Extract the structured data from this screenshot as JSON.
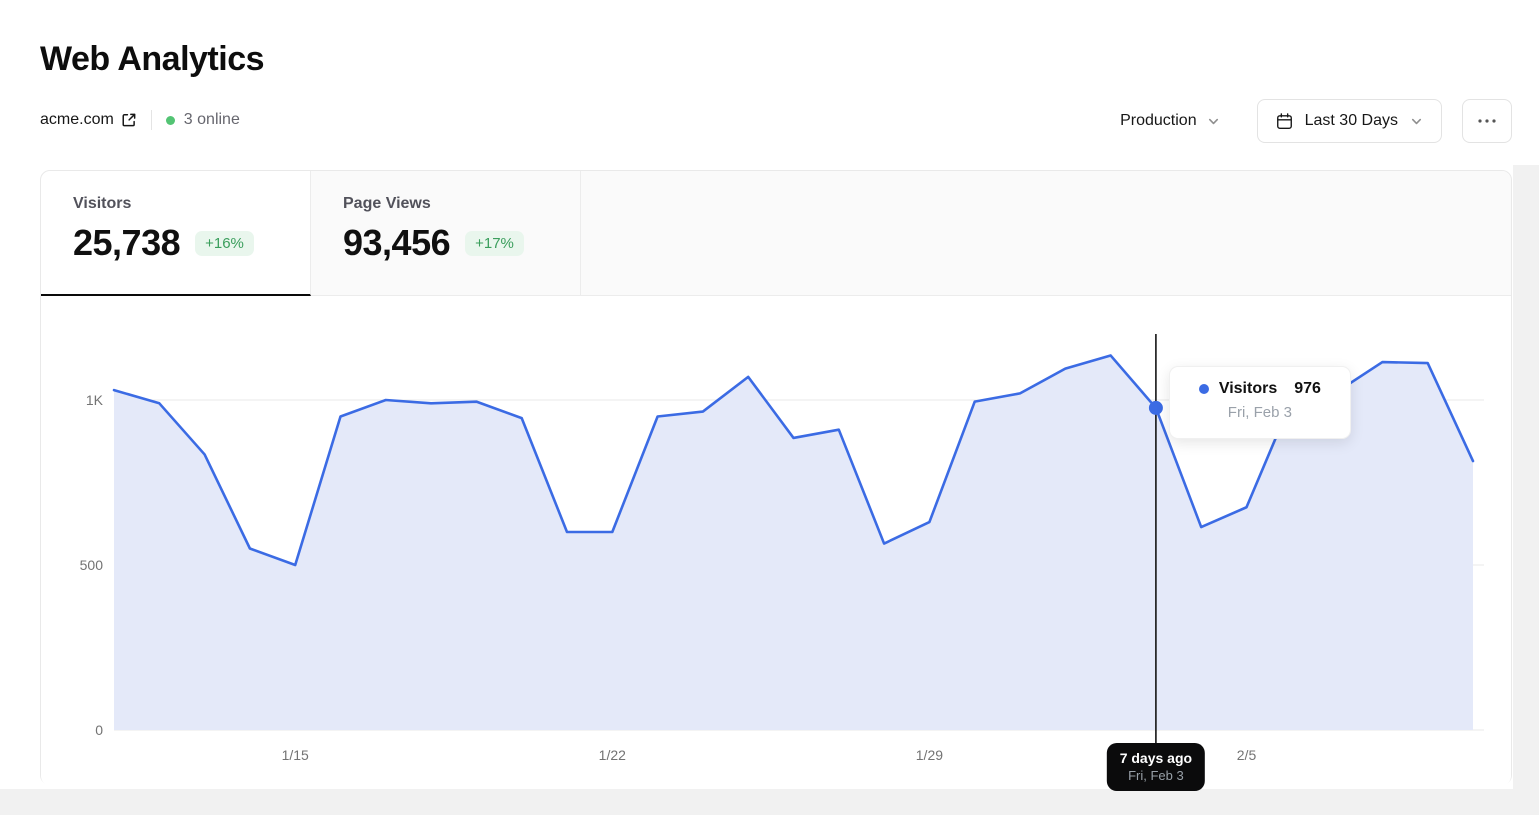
{
  "header": {
    "title": "Web Analytics",
    "domain": "acme.com",
    "online_status": "3 online",
    "environment": "Production",
    "date_range": "Last 30 Days"
  },
  "tabs": [
    {
      "label": "Visitors",
      "value": "25,738",
      "delta": "+16%",
      "active": true
    },
    {
      "label": "Page Views",
      "value": "93,456",
      "delta": "+17%",
      "active": false
    }
  ],
  "tooltip": {
    "series": "Visitors",
    "value": "976",
    "date": "Fri, Feb 3"
  },
  "cursor_pill": {
    "line1": "7 days ago",
    "line2": "Fri, Feb 3"
  },
  "colors": {
    "accent_blue": "#3b6be4",
    "area_fill": "#e4e9f9",
    "gridline": "#e9e9e9",
    "axis_label": "#737373",
    "cursor_black": "#141414",
    "online_green": "#53c474",
    "badge_green": "#3a9e5c",
    "badge_green_bg": "#e9f6ed"
  },
  "chart_data": {
    "type": "area",
    "title": "",
    "xlabel": "",
    "ylabel": "",
    "x": [
      "1/11",
      "1/12",
      "1/13",
      "1/14",
      "1/15",
      "1/16",
      "1/17",
      "1/18",
      "1/19",
      "1/20",
      "1/21",
      "1/22",
      "1/23",
      "1/24",
      "1/25",
      "1/26",
      "1/27",
      "1/28",
      "1/29",
      "1/30",
      "1/31",
      "2/1",
      "2/2",
      "2/3",
      "2/4",
      "2/5",
      "2/6",
      "2/7",
      "2/8",
      "2/9",
      "2/10"
    ],
    "series": [
      {
        "name": "Visitors",
        "values": [
          1030,
          990,
          835,
          550,
          500,
          950,
          1000,
          990,
          995,
          945,
          600,
          600,
          950,
          965,
          1070,
          885,
          910,
          565,
          630,
          995,
          1020,
          1095,
          1135,
          976,
          615,
          675,
          1000,
          1025,
          1115,
          1112,
          815
        ]
      }
    ],
    "xticks": [
      "1/15",
      "1/22",
      "1/29",
      "2/5"
    ],
    "yticks": [
      "0",
      "500",
      "1K"
    ],
    "ytick_values": [
      0,
      500,
      1000
    ],
    "ylim": [
      0,
      1315
    ],
    "grid": true,
    "legend": false,
    "highlight": {
      "index": 23,
      "date": "2/3",
      "value": 976
    }
  }
}
